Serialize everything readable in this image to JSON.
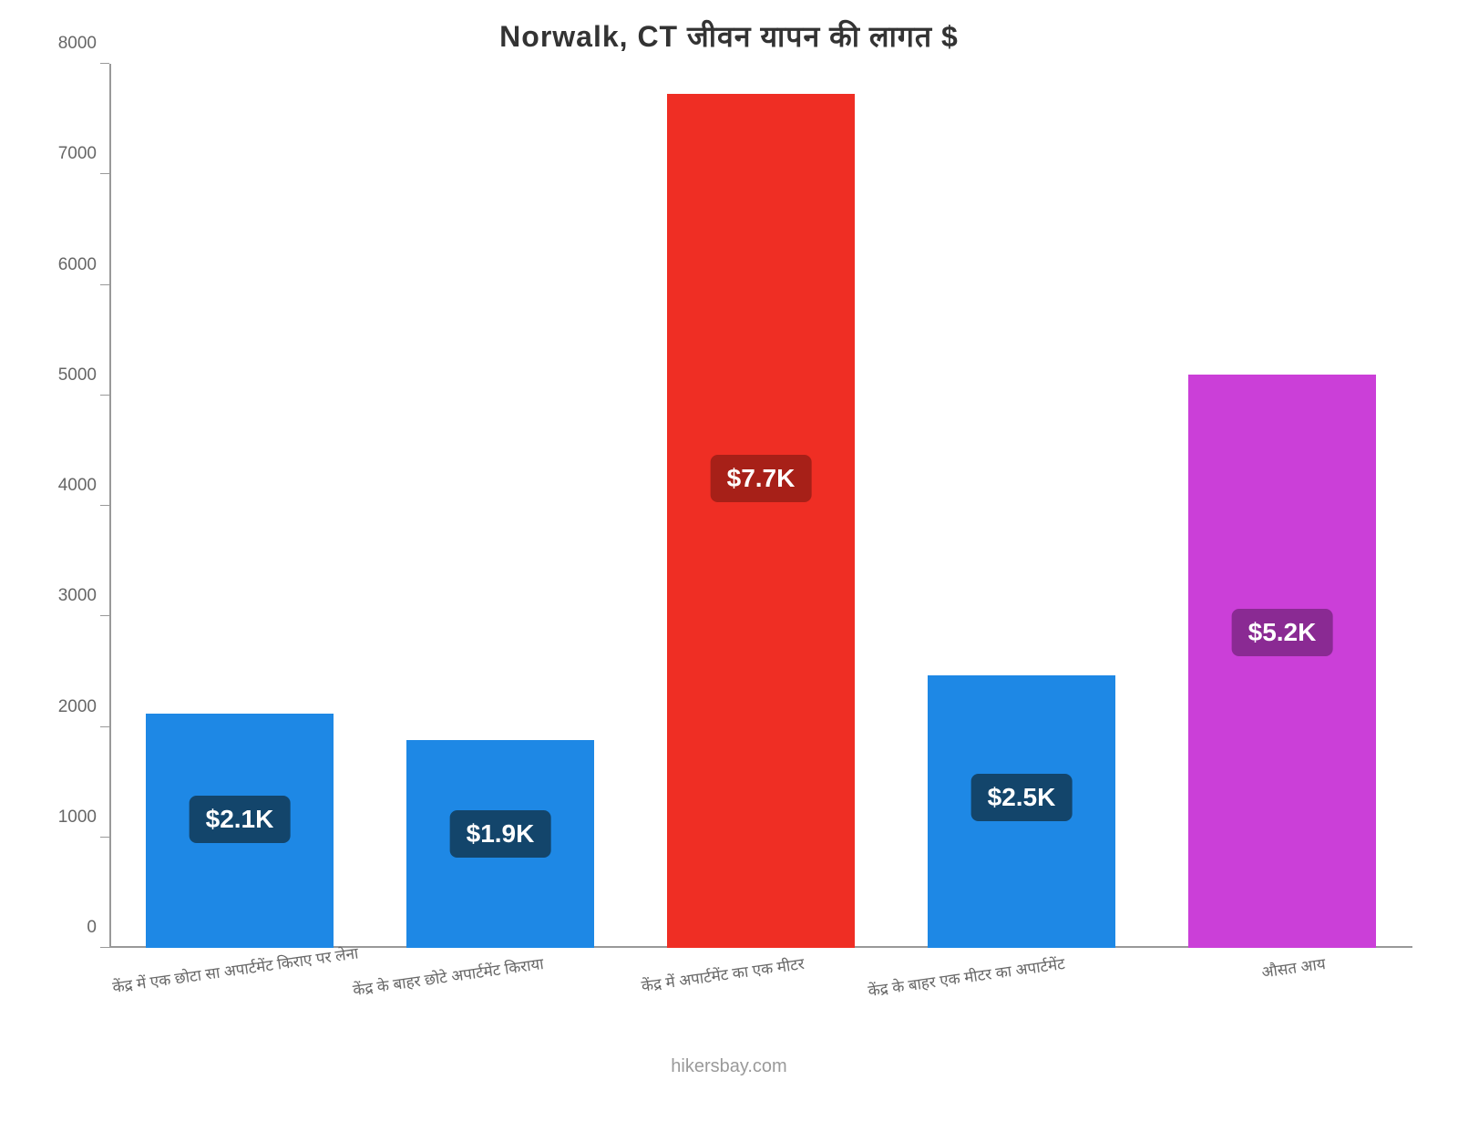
{
  "chart": {
    "type": "bar",
    "title": "Norwalk, CT जीवन  यापन  की  लागत  $",
    "title_fontsize": 32,
    "title_color": "#333333",
    "background_color": "#ffffff",
    "axis_color": "#999999",
    "tick_label_color": "#666666",
    "tick_label_fontsize": 19,
    "xlabel_fontsize": 17,
    "badge_fontsize": 28,
    "attribution": "hikersbay.com",
    "attribution_fontsize": 20,
    "attribution_color": "#9a9a9a",
    "ylim": [
      0,
      8000
    ],
    "ytick_step": 1000,
    "yticks": [
      0,
      1000,
      2000,
      3000,
      4000,
      5000,
      6000,
      7000,
      8000
    ],
    "categories": [
      "केंद्र में एक छोटा सा अपार्टमेंट किराए पर लेना",
      "केंद्र के बाहर छोटे अपार्टमेंट किराया",
      "केंद्र में अपार्टमेंट का एक मीटर",
      "केंद्र के बाहर एक मीटर का अपार्टमेंट",
      "औसत आय"
    ],
    "values": [
      2120,
      1880,
      7730,
      2470,
      5190
    ],
    "value_labels": [
      "$2.1K",
      "$1.9K",
      "$7.7K",
      "$2.5K",
      "$5.2K"
    ],
    "bar_colors": [
      "#1e88e5",
      "#1e88e5",
      "#ef2e24",
      "#1e88e5",
      "#cb3fd8"
    ],
    "badge_bg_colors": [
      "#13456b",
      "#13456b",
      "#a72018",
      "#13456b",
      "#8a2a93"
    ],
    "badge_text_color": "#ffffff",
    "bar_width_ratio": 0.72
  }
}
